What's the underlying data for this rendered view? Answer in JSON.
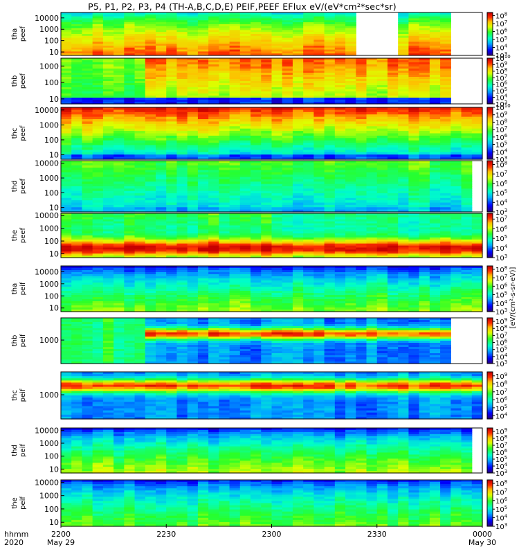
{
  "chart_data": {
    "type": "heatmap",
    "title": "P5, P1, P2, P3, P4 (TH-A,B,C,D,E) PEIF,PEEF EFlux eV/(eV*cm²*sec*sr)",
    "colorbar_label": "[eV/(cm²-s-sr-eV)]",
    "xaxis": {
      "left_labels": [
        "hhmm",
        "2020"
      ],
      "ticks": [
        {
          "value": 0,
          "label": "2200",
          "sublabel": "May 29"
        },
        {
          "value": 30,
          "label": "2230",
          "sublabel": ""
        },
        {
          "value": 60,
          "label": "2300",
          "sublabel": ""
        },
        {
          "value": 90,
          "label": "2330",
          "sublabel": ""
        },
        {
          "value": 120,
          "label": "0000",
          "sublabel": "May 30"
        }
      ],
      "range_minutes": [
        0,
        120
      ]
    },
    "panels": [
      {
        "id": "tha-peef",
        "probe": "tha",
        "species": "peef",
        "ylabels": [
          "10000",
          "1000",
          "100",
          "10"
        ],
        "yvals": [
          10000,
          1000,
          100,
          10
        ],
        "yrange": [
          5,
          30000
        ],
        "cb_exponents": [
          "3",
          "4",
          "5",
          "6",
          "7",
          "8"
        ],
        "cb_range": [
          3,
          8.4
        ],
        "gap_minutes": [
          [
            85,
            97
          ],
          [
            112,
            120
          ]
        ],
        "side_bars": []
      },
      {
        "id": "thb-peef",
        "probe": "thb",
        "species": "peef",
        "ylabels": [
          "1000",
          "100",
          "10"
        ],
        "yvals": [
          1000,
          100,
          10
        ],
        "yrange": [
          5,
          3000
        ],
        "cb_exponents": [
          "3",
          "4",
          "5",
          "6",
          "7",
          "8",
          "9",
          "10"
        ],
        "cb_range": [
          3,
          10
        ],
        "gap_minutes": [
          [
            112,
            120
          ]
        ],
        "side_bars": []
      },
      {
        "id": "thc-peef",
        "probe": "thc",
        "species": "peef",
        "ylabels": [
          "10000",
          "1000",
          "100",
          "10"
        ],
        "yvals": [
          10000,
          1000,
          100,
          10
        ],
        "yrange": [
          5,
          15000
        ],
        "cb_exponents": [
          "3",
          "4",
          "5",
          "6",
          "7",
          "8",
          "9",
          "10"
        ],
        "cb_range": [
          3,
          10
        ],
        "gap_minutes": [
          [
            119,
            120
          ]
        ],
        "side_bars": []
      },
      {
        "id": "thd-peef",
        "probe": "thd",
        "species": "peef",
        "ylabels": [
          "10000",
          "1000",
          "100",
          "10"
        ],
        "yvals": [
          10000,
          1000,
          100,
          10
        ],
        "yrange": [
          5,
          15000
        ],
        "cb_exponents": [
          "3",
          "4",
          "5",
          "6",
          "7",
          "8"
        ],
        "cb_range": [
          3,
          8.4
        ],
        "gap_minutes": [
          [
            116,
            120
          ]
        ],
        "side_bars": []
      },
      {
        "id": "the-peef",
        "probe": "the",
        "species": "peef",
        "ylabels": [
          "10000",
          "1000",
          "100",
          "10"
        ],
        "yvals": [
          10000,
          1000,
          100,
          10
        ],
        "yrange": [
          5,
          15000
        ],
        "cb_exponents": [
          "3",
          "4",
          "5",
          "6",
          "7"
        ],
        "cb_range": [
          3,
          7.6
        ],
        "gap_minutes": [],
        "side_bars": []
      },
      {
        "id": "tha-peif",
        "probe": "tha",
        "species": "peif",
        "ylabels": [
          "10000",
          "1000",
          "100",
          "10"
        ],
        "yvals": [
          10000,
          1000,
          100,
          10
        ],
        "yrange": [
          5,
          30000
        ],
        "cb_exponents": [
          "3",
          "4",
          "5",
          "6",
          "7",
          "8"
        ],
        "cb_range": [
          3,
          8.4
        ],
        "gap_minutes": [],
        "side_bars": []
      },
      {
        "id": "thb-peif",
        "probe": "thb",
        "species": "peif",
        "ylabels": [
          "1000"
        ],
        "yvals": [
          1000
        ],
        "yrange": [
          150,
          6000
        ],
        "cb_exponents": [
          "3",
          "4",
          "5",
          "6",
          "7",
          "8",
          "9"
        ],
        "cb_range": [
          3,
          9.5
        ],
        "gap_minutes": [
          [
            112,
            120
          ]
        ],
        "side_bars": []
      },
      {
        "id": "thc-peif",
        "probe": "thc",
        "species": "peif",
        "ylabels": [
          "1000"
        ],
        "yvals": [
          1000
        ],
        "yrange": [
          150,
          6000
        ],
        "cb_exponents": [
          "4",
          "5",
          "6",
          "7",
          "8",
          "9"
        ],
        "cb_range": [
          3.6,
          9.5
        ],
        "gap_minutes": [
          [
            119,
            120
          ]
        ],
        "side_bars": []
      },
      {
        "id": "thd-peif",
        "probe": "thd",
        "species": "peif",
        "ylabels": [
          "10000",
          "1000",
          "100",
          "10"
        ],
        "yvals": [
          10000,
          1000,
          100,
          10
        ],
        "yrange": [
          5,
          15000
        ],
        "cb_exponents": [
          "3",
          "4",
          "5",
          "6",
          "7",
          "8",
          "9"
        ],
        "cb_range": [
          3,
          9.5
        ],
        "gap_minutes": [
          [
            116,
            120
          ]
        ],
        "side_bars": []
      },
      {
        "id": "the-peif",
        "probe": "the",
        "species": "peif",
        "ylabels": [
          "10000",
          "1000",
          "100",
          "10"
        ],
        "yvals": [
          10000,
          1000,
          100,
          10
        ],
        "yrange": [
          5,
          15000
        ],
        "cb_exponents": [
          "3",
          "4",
          "5",
          "6",
          "7",
          "8"
        ],
        "cb_range": [
          3,
          8.4
        ],
        "gap_minutes": [],
        "side_bars": []
      }
    ]
  }
}
